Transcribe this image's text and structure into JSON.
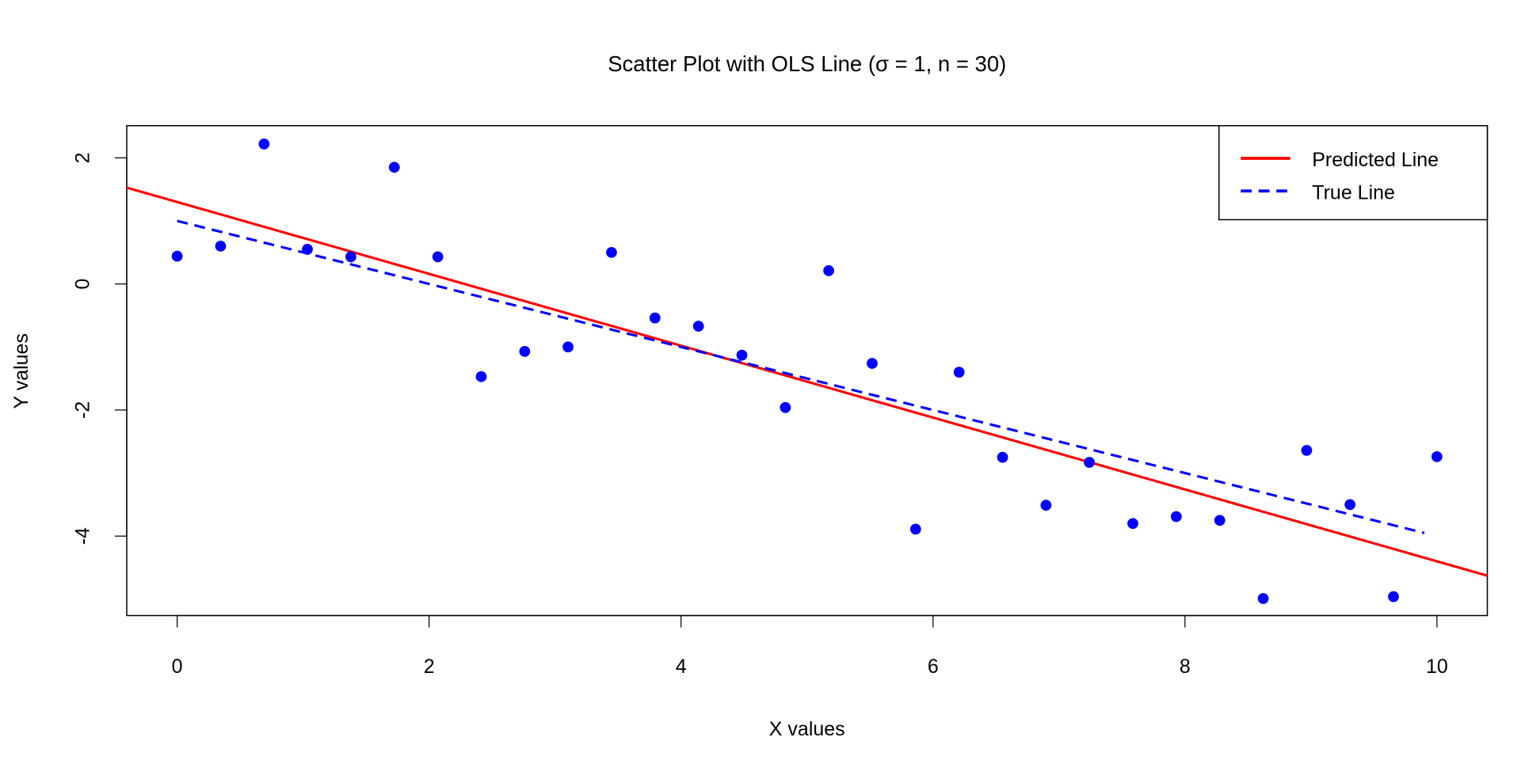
{
  "chart_data": {
    "type": "scatter",
    "title": "Scatter Plot with OLS Line (σ = 1, n = 30)",
    "xlabel": "X values",
    "ylabel": "Y values",
    "xlim": [
      -0.4,
      10.4
    ],
    "ylim": [
      -5.26,
      2.51
    ],
    "xticks": [
      0,
      2,
      4,
      6,
      8,
      10
    ],
    "yticks": [
      -4,
      -2,
      0,
      2
    ],
    "grid": false,
    "point_color": "#0000ff",
    "points": {
      "x": [
        0,
        0.345,
        0.69,
        1.034,
        1.379,
        1.724,
        2.069,
        2.414,
        2.759,
        3.103,
        3.448,
        3.793,
        4.138,
        4.483,
        4.828,
        5.172,
        5.517,
        5.862,
        6.207,
        6.552,
        6.897,
        7.241,
        7.586,
        7.931,
        8.276,
        8.621,
        8.966,
        9.31,
        9.655,
        10
      ],
      "y": [
        0.44,
        0.6,
        2.22,
        0.55,
        0.43,
        1.85,
        0.43,
        -1.47,
        -1.07,
        -1.0,
        0.5,
        -0.54,
        -0.67,
        -1.13,
        -1.96,
        0.21,
        -1.26,
        -3.89,
        -1.4,
        -2.75,
        -3.51,
        -2.83,
        -3.8,
        -3.69,
        -3.75,
        -4.99,
        -2.64,
        -3.5,
        -4.96,
        -2.74
      ]
    },
    "lines": [
      {
        "name": "Predicted Line",
        "intercept": 1.3,
        "slope": -0.57,
        "x_range": [
          -0.4,
          10.4
        ],
        "color": "#ff0000",
        "style": "solid"
      },
      {
        "name": "True Line",
        "intercept": 1.0,
        "slope": -0.5,
        "x_range": [
          0,
          9.9
        ],
        "color": "#0000ff",
        "style": "dashed"
      }
    ],
    "legend": {
      "position": "top-right",
      "entries": [
        "Predicted Line",
        "True Line"
      ]
    }
  }
}
